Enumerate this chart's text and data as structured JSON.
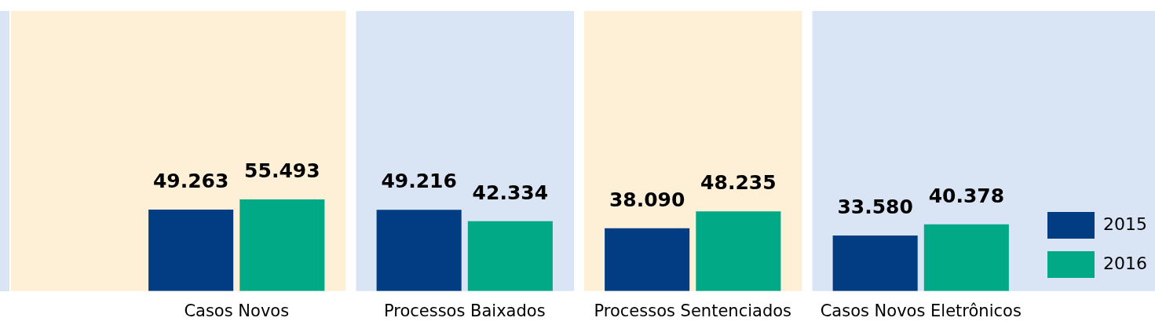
{
  "chart_data": {
    "type": "bar",
    "categories": [
      "Casos Novos",
      "Processos Baixados",
      "Processos Sentenciados",
      "Casos Novos Eletrônicos"
    ],
    "series": [
      {
        "name": "2015",
        "color": "#023d84",
        "values": [
          49263,
          49216,
          38090,
          33580
        ],
        "value_labels": [
          "49.263",
          "49.216",
          "38.090",
          "33.580"
        ]
      },
      {
        "name": "2016",
        "color": "#02a987",
        "values": [
          55493,
          42334,
          48235,
          40378
        ],
        "value_labels": [
          "55.493",
          "42.334",
          "48.235",
          "40.378"
        ]
      }
    ],
    "bands": [
      {
        "axis": "x",
        "from": "Casos Novos",
        "to": "Casos Novos",
        "color": "#fef0d7"
      },
      {
        "axis": "x",
        "from": "Processos Baixados",
        "to": "Processos Baixados",
        "color": "#d9e4f4"
      },
      {
        "axis": "x",
        "from": "Processos Sentenciados",
        "to": "Processos Sentenciados",
        "color": "#fef0d7"
      },
      {
        "axis": "x",
        "from": "Casos Novos Eletrônicos",
        "to": "Casos Novos Eletrônicos",
        "color": "#d9e4f4"
      }
    ],
    "legend": "top right",
    "grid": false
  }
}
